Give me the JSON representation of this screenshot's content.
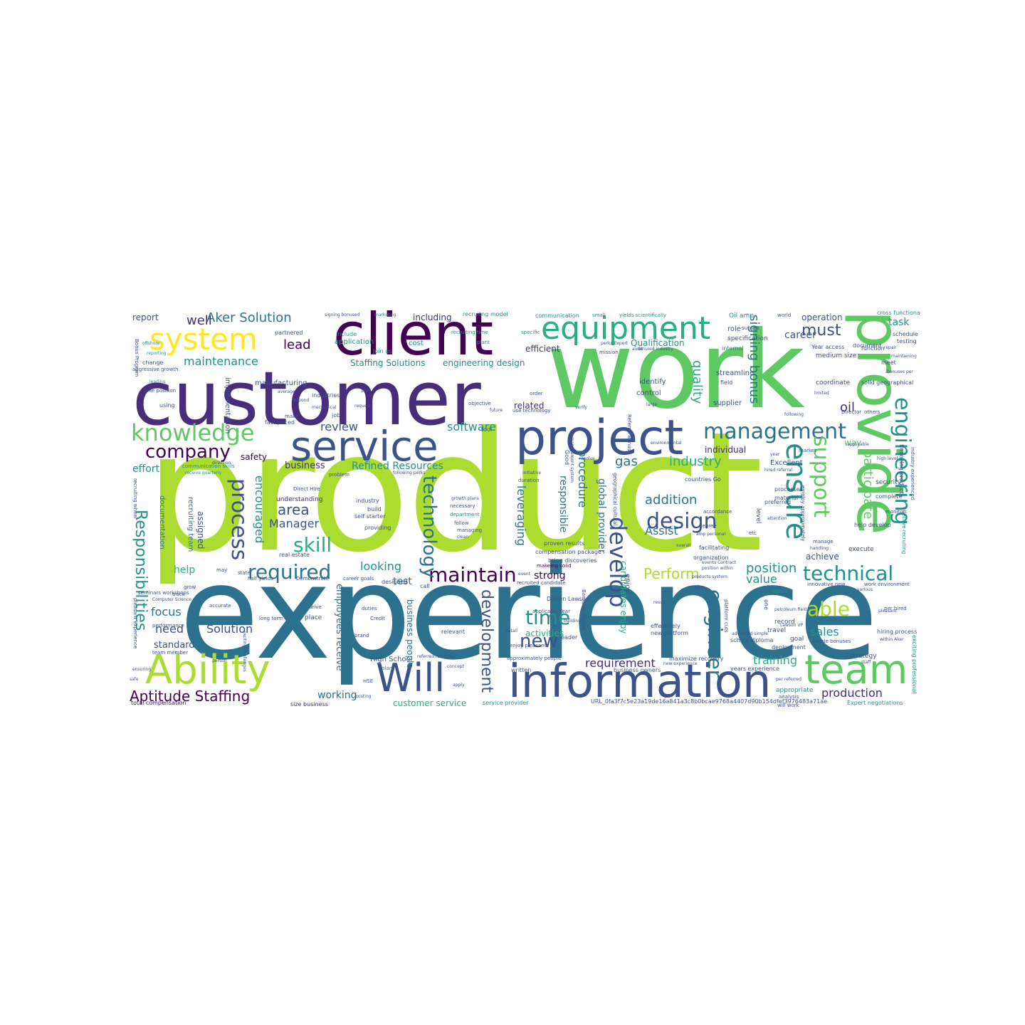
{
  "palette": {
    "dark_purple": "#440154",
    "purple": "#472d7b",
    "indigo": "#3b528b",
    "blue": "#2c728e",
    "teal": "#21918c",
    "green": "#28ae80",
    "light_green": "#5ec962",
    "lime": "#addc30",
    "yellow": "#fde725"
  },
  "words": {
    "product": "product",
    "experience": "experience",
    "customer": "customer",
    "work": "work",
    "client": "client",
    "provide": "provide",
    "project": "project",
    "service": "service",
    "information": "information",
    "will": "Will",
    "team": "team",
    "ability": "Ability",
    "system": "system",
    "equipment": "equipment",
    "knowledge": "knowledge",
    "management": "management",
    "ensure": "ensure",
    "engineering": "engineering",
    "company": "company",
    "support": "support",
    "design": "design",
    "develop": "develop",
    "technical": "technical",
    "maintain": "maintain",
    "required": "required",
    "process": "process",
    "skill": "skill",
    "able": "able",
    "time": "time",
    "new": "new",
    "engineer": "engineer",
    "technology": "technology",
    "development": "development",
    "responsibilities": "Responsibilities",
    "aptitude_staffing": "Aptitude Staffing",
    "aker_solution": "Aker Solution",
    "must": "must",
    "signing_bonus": "signing bonus",
    "quality": "quality",
    "maintenance": "maintenance",
    "well": "well",
    "lead": "lead",
    "software": "software",
    "review": "review",
    "area": "area",
    "manager": "Manager",
    "addition": "addition",
    "industry": "industry",
    "gas": "gas",
    "oil": "oil",
    "participate": "participate",
    "perform": "Perform",
    "position": "position",
    "value": "value",
    "sales": "sales",
    "training": "training",
    "production": "production",
    "requirement": "requirement",
    "working": "working",
    "solution": "Solution",
    "need": "need",
    "focus": "focus",
    "help": "help",
    "effort": "effort",
    "safety": "safety",
    "business": "business",
    "refined_resources": "Refined Resources",
    "looking": "looking",
    "test": "test",
    "strong": "strong",
    "related": "related",
    "efficient": "efficient",
    "including": "including",
    "operation": "operation",
    "task": "task",
    "career": "career",
    "qualification": "Qualification",
    "encouraged": "encouraged",
    "leveraging": "leveraging",
    "procedure": "procedure",
    "responsible": "responsible",
    "assist": "Assist",
    "achieve": "achieve",
    "way": "way",
    "individual": "individual",
    "excellent": "Excellent",
    "standard": "standard",
    "customer_service": "customer service",
    "staffing_solutions": "Staffing Solutions",
    "engineering_design": "engineering design",
    "global_provider": "global provider",
    "candidates_enjoy": "candidates enjoy",
    "activities": "activities",
    "high_school": "High School",
    "employees_receive": "employees receive",
    "business_people": "business people",
    "report": "report",
    "documentation": "documentation",
    "recruiting_team": "recruiting team",
    "assigned": "assigned",
    "understanding": "understanding",
    "implementation": "implementation",
    "manufacturing": "manufacturing",
    "application": "application",
    "cost": "cost",
    "communication": "communication",
    "specification": "specification",
    "role": "role",
    "streamline": "streamline",
    "identify": "identify",
    "control": "control",
    "supplier": "supplier",
    "coordinate": "coordinate",
    "document": "document",
    "medium_size": "medium size",
    "security": "security",
    "organization": "organization",
    "execute": "execute",
    "record": "record",
    "goal": "goal",
    "travel": "travel",
    "strategy": "strategy",
    "years_experience": "years experience",
    "appropriate": "appropriate",
    "expert_negotiations": "Expert negotiations",
    "url_token": "URL_0fa3f7c5e23a19de16a841a3c8b0bcae9768a4407d90b154dfef3976483a71ae",
    "service_provider": "service provider",
    "total_compensation": "total compensation",
    "size_business": "size business",
    "will_work": "will work",
    "darren_lawson": "Darren Lawson",
    "bring_discoveries": "bring discoveries",
    "compensation_package": "compensation package",
    "proven_results": "proven results",
    "makeing_solid": "makeing solid",
    "recruited_candidate": "recruited candidate",
    "cross_functional": "cross functional",
    "schedule": "schedule",
    "testing": "testing",
    "meet": "meet",
    "function": "function",
    "solid_geographical": "solid geographical",
    "financing_products": "financing products",
    "exciting_professional": "exciting professional",
    "business_owners": "business owners",
    "new_platform": "new platform",
    "effectively": "effectively",
    "leader": "leader",
    "written": "written",
    "maximize_recovery": "maximize recovery",
    "school_diploma": "school diploma",
    "hiring_process": "hiring process",
    "per_hired": "per hired",
    "double_bonuses": "double bonuses",
    "self_starter": "self starter",
    "providing": "providing",
    "department": "department",
    "managing": "managing",
    "growth_plans": "growth plans",
    "recruiting_time": "recruiting time",
    "recruitng_model": "recruitng model",
    "oil_amp": "Oil amp",
    "world": "world",
    "subsea": "subsea",
    "fast_paced": "fast paced",
    "job": "job",
    "industries": "industries",
    "half_yields": "half yields",
    "demonstrate": "Demonstrate",
    "career_goals": "career goals",
    "real_estate": "real estate",
    "long_term": "long term",
    "place": "place",
    "drive": "drive",
    "accurate": "accurate",
    "seminars_workshops": "seminars workshops",
    "performance": "performance",
    "team_member": "team member",
    "grow": "grow",
    "track": "track",
    "communication_skills": "communication skills",
    "receive_quarterly": "receive quarterly",
    "partnered": "partnered",
    "change": "change",
    "aggressive_growth": "aggressive growth",
    "take_position": "take position",
    "using": "using",
    "bonus_program": "Bonus Program",
    "design_label_2": "material",
    "processes": "processes",
    "complete": "complete",
    "monitor": "monitor",
    "help_develop": "help develop",
    "facilitating": "facilitating",
    "countries_go": "countries Go",
    "year_access": "Year access",
    "plant": "plant",
    "small": "small",
    "yields_scientifically": "yields scientifically",
    "signing_bonused": "signing bonused",
    "marketing": "marketing",
    "objective": "objective",
    "future": "future",
    "verify": "verify",
    "tool": "tool",
    "problem": "problem",
    "following_perks": "following perks",
    "designed": "designed",
    "call": "call",
    "necessary": "necessary",
    "follow": "follow",
    "clean": "clean",
    "relevant": "relevant",
    "credit": "Credit",
    "plan": "plan",
    "existing": "existing",
    "hse": "HSE",
    "brand": "brand",
    "duties": "duties",
    "referred_recruited": "referred recruited",
    "repair": "repair",
    "bonuses_per": "bonuses per",
    "within_aker": "within Aker",
    "various": "various",
    "within": "within",
    "innovative_new": "innovative new",
    "work_environment": "work environment",
    "site": "site",
    "attention": "attention",
    "preferred": "preferred",
    "market": "market",
    "resolve": "resolve",
    "initiative": "initiative",
    "order": "order",
    "use_technology": "use technology",
    "mission": "mission",
    "audit": "audit",
    "perks_expert": "perks Expert",
    "tenured_industry": "tenured industry",
    "large": "large",
    "environmental": "environmental",
    "limited": "limited",
    "applicable": "applicable",
    "high_level": "high level",
    "internal": "internal",
    "field": "field",
    "following": "following",
    "maintaining": "maintaining",
    "staff": "staff",
    "per_referred": "per referred",
    "analysis": "analysis",
    "deployment": "deployment",
    "apply": "apply",
    "join_us": "Join us",
    "include": "include",
    "specific": "specific",
    "detail": "detail",
    "concept": "concept",
    "director": "Director",
    "others": "others",
    "hired_referral": "hired referral",
    "enjoy_pleasant": "enjoy pleasant",
    "approximately_people": "approximately people",
    "duration": "duration",
    "plus": "plus",
    "request": "request",
    "person": "person",
    "ensuring": "ensuring",
    "safe": "safe",
    "make": "make",
    "respond": "respond",
    "average": "average",
    "direct_hire": "Direct Hire",
    "mechanical": "mechanical",
    "leading": "leading",
    "reporting": "reporting",
    "offshore": "offshore",
    "building": "building",
    "may": "may",
    "direction": "direction",
    "event": "event",
    "state": "state",
    "recruiting_wheel": "recruiting wheel",
    "level": "level",
    "etc": "etc",
    "accordance": "accordance",
    "degree": "degree",
    "amp_personal": "amp personal",
    "manage": "manage",
    "handling": "handling",
    "one": "one",
    "lawson_vp": "Lawson VP",
    "leveraging_2": "leverage",
    "platform_cuts": "platform cuts",
    "products_system": "products system",
    "petroleum_field": "petroleum field",
    "pleasant_experience": "pleasant experience",
    "exciting_challenges": "exciting challenges",
    "computer_science": "Computer Science",
    "build": "build",
    "industry_2": "industry",
    "applicable_year": "applicable Year",
    "enjoy": "enjoy",
    "bachelor_degree": "Bachelor degree",
    "geographical_cultural": "geographical cultural",
    "referral_bonus": "Referral Bonus",
    "good": "Good",
    "management_system": "management system",
    "employ_approximately": "employ approximately",
    "events_contract": "events Contract",
    "position_within": "position within",
    "year": "year",
    "effective_recruiting": "effective recruiting",
    "industry_experienced": "industry experienced",
    "pleasant": "pleasant",
    "new_experience": "new experience",
    "advanced_simple": "advanced simple",
    "result": "result",
    "overall": "overall"
  }
}
